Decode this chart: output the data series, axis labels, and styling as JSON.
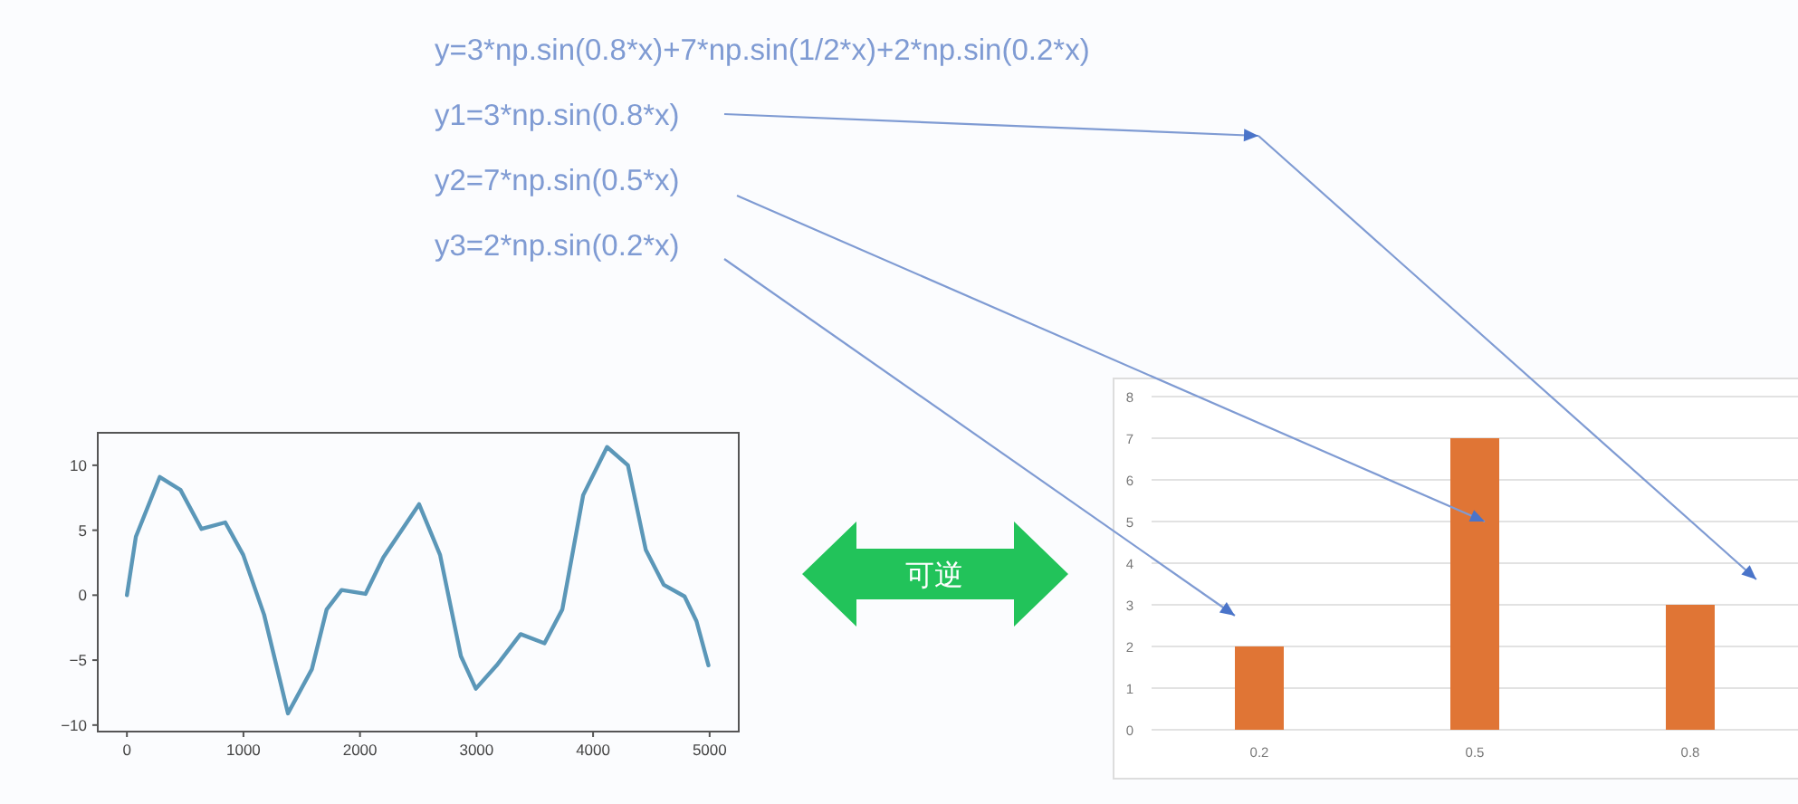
{
  "chart_data": [
    {
      "type": "other",
      "annotations": [
        "y=3*np.sin(0.8*x)+7*np.sin(1/2*x)+2*np.sin(0.2*x)",
        "y1=3*np.sin(0.8*x)",
        "y2=7*np.sin(0.5*x)",
        "y3=2*np.sin(0.2*x)",
        "可逆"
      ]
    },
    {
      "type": "line",
      "color": "#5b97b8",
      "xlim": [
        -250,
        5250
      ],
      "ylim": [
        -10.5,
        12.5
      ],
      "xticks": [
        0,
        1000,
        2000,
        3000,
        4000,
        5000
      ],
      "yticks": [
        -10,
        -5,
        0,
        5,
        10
      ],
      "x": [
        0,
        77,
        282,
        460,
        640,
        844,
        998,
        1177,
        1382,
        1587,
        1714,
        1842,
        2047,
        2200,
        2507,
        2687,
        2866,
        2994,
        3173,
        3378,
        3583,
        3736,
        3915,
        4120,
        4299,
        4452,
        4606,
        4785,
        4887,
        4990
      ],
      "values": [
        0,
        4.5,
        9.1,
        8.1,
        5.1,
        5.6,
        3.1,
        -1.5,
        -9.1,
        -5.7,
        -1.1,
        0.4,
        0.1,
        2.9,
        7.0,
        3.1,
        -4.7,
        -7.2,
        -5.4,
        -3.0,
        -3.7,
        -1.1,
        7.7,
        11.4,
        10,
        3.5,
        0.8,
        -0.1,
        -2.0,
        -5.4
      ]
    },
    {
      "type": "bar",
      "categories": [
        "0.2",
        "0.5",
        "0.8"
      ],
      "values": [
        2,
        7,
        3
      ],
      "color": "#e07535",
      "ylim": [
        0,
        8
      ],
      "yticks": [
        0,
        1,
        2,
        3,
        4,
        5,
        6,
        7,
        8
      ],
      "grid": "y"
    }
  ]
}
